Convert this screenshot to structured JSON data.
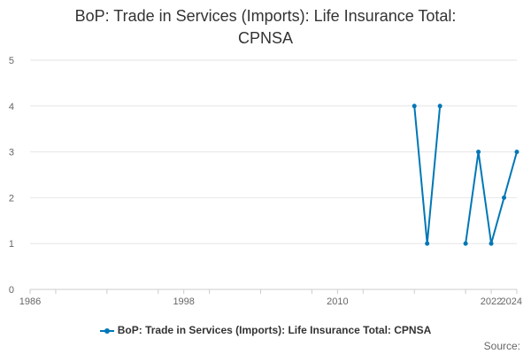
{
  "chart_data": {
    "type": "line",
    "title_lines": [
      "BoP: Trade in Services (Imports): Life Insurance Total:",
      "CPNSA"
    ],
    "xlabel": "",
    "ylabel": "",
    "xlim": [
      1986,
      2024
    ],
    "ylim": [
      0,
      5
    ],
    "x_ticks": [
      1986,
      1998,
      2010,
      2022,
      2024
    ],
    "y_ticks": [
      0,
      1,
      2,
      3,
      4,
      5
    ],
    "grid": true,
    "legend_position": "bottom",
    "series": [
      {
        "name": "BoP: Trade in Services (Imports): Life Insurance Total: CPNSA",
        "color": "#0077b6",
        "x": [
          2016,
          2017,
          2018,
          2019,
          2020,
          2021,
          2022,
          2023,
          2024
        ],
        "values": [
          4,
          1,
          4,
          null,
          1,
          3,
          1,
          2,
          3
        ]
      }
    ]
  },
  "legend": {
    "label": "BoP: Trade in Services (Imports): Life Insurance Total: CPNSA"
  },
  "source": {
    "label": "Source:"
  }
}
